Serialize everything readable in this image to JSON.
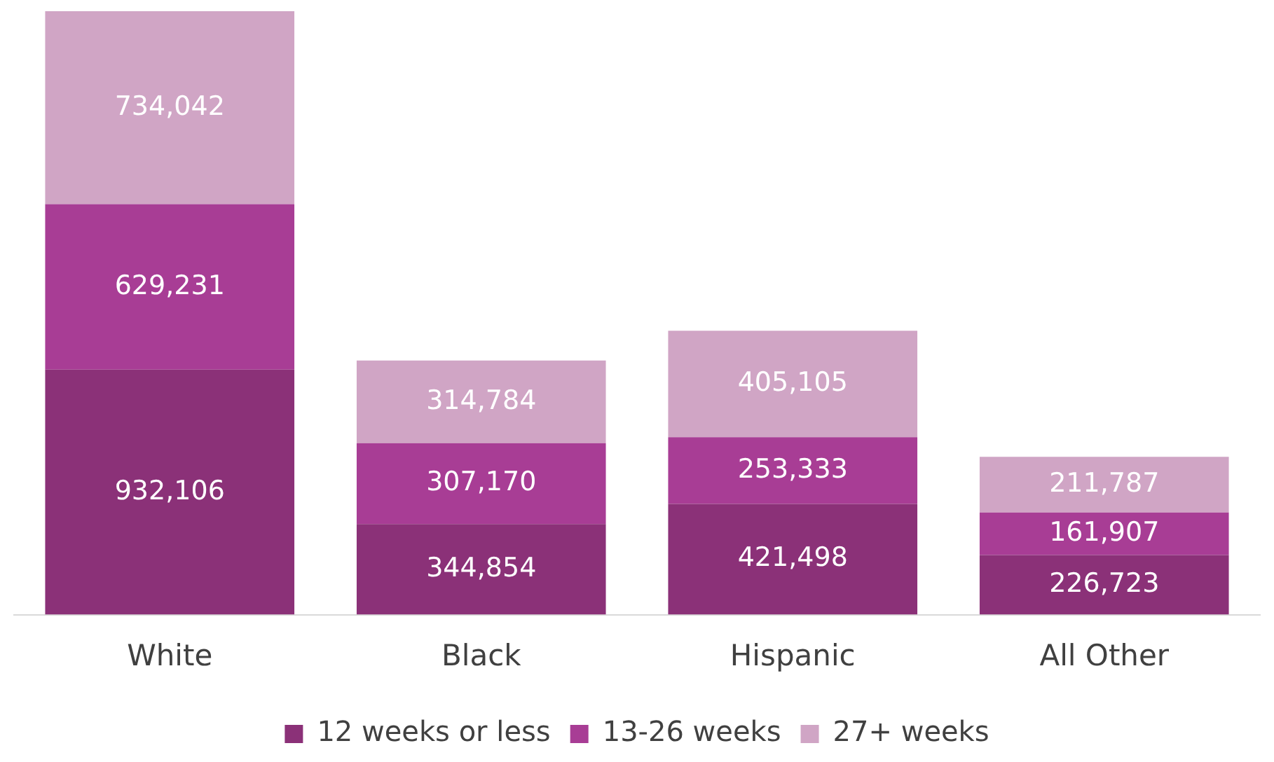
{
  "chart_data": {
    "type": "bar",
    "stacked": true,
    "categories": [
      "White",
      "Black",
      "Hispanic",
      "All Other"
    ],
    "series": [
      {
        "name": "12 weeks or less",
        "color": "#8b3178",
        "values": [
          932106,
          344854,
          421498,
          226723
        ],
        "value_labels": [
          "932,106",
          "344,854",
          "421,498",
          "226,723"
        ]
      },
      {
        "name": "13-26 weeks",
        "color": "#a83d95",
        "values": [
          629231,
          307170,
          253333,
          161907
        ],
        "value_labels": [
          "629,231",
          "307,170",
          "253,333",
          "161,907"
        ]
      },
      {
        "name": "27+ weeks",
        "color": "#d0a5c5",
        "values": [
          734042,
          314784,
          405105,
          211787
        ],
        "value_labels": [
          "734,042",
          "314,784",
          "405,105",
          "211,787"
        ]
      }
    ],
    "legend": "bottom",
    "grid": false
  }
}
